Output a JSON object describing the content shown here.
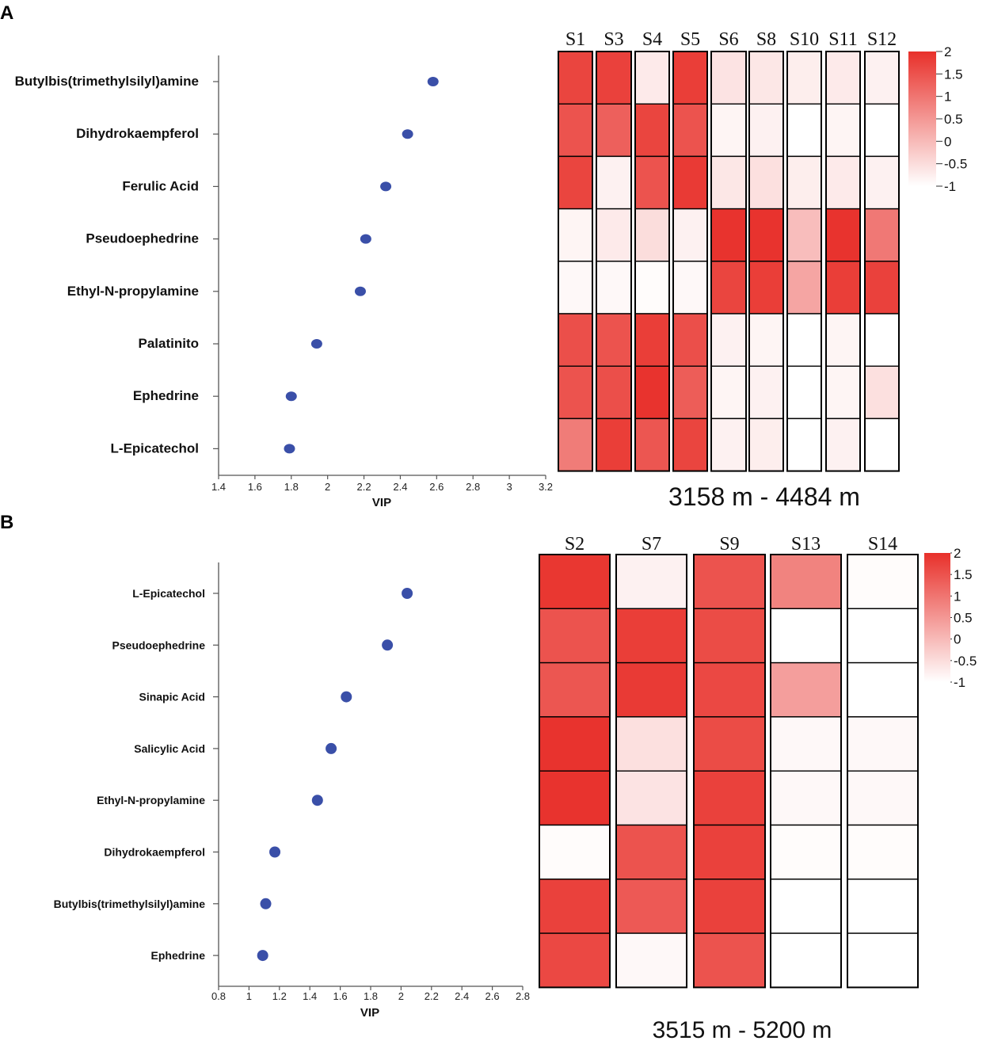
{
  "chart_data": [
    {
      "panel": "A",
      "type": "scatter",
      "xlabel": "VIP",
      "xlim": [
        1.4,
        3.2
      ],
      "xticks": [
        1.4,
        1.6,
        1.8,
        2,
        2.2,
        2.4,
        2.6,
        2.8,
        3,
        3.2
      ],
      "metabolites": [
        "Butylbis(trimethylsilyl)amine",
        "Dihydrokaempferol",
        "Ferulic Acid",
        "Pseudoephedrine",
        "Ethyl-N-propylamine",
        "Palatinito",
        "Ephedrine",
        "L-Epicatechol"
      ],
      "vip": [
        2.58,
        2.44,
        2.32,
        2.21,
        2.18,
        1.94,
        1.8,
        1.79
      ],
      "heatmap": {
        "type": "heatmap",
        "title": "3158 m - 4484 m",
        "columns": [
          "S1",
          "S3",
          "S4",
          "S5",
          "S6",
          "S8",
          "S10",
          "S11",
          "S12"
        ],
        "values": [
          [
            1.7,
            1.75,
            -0.7,
            1.8,
            -0.6,
            -0.65,
            -0.75,
            -0.7,
            -0.8
          ],
          [
            1.5,
            1.3,
            1.7,
            1.5,
            -0.85,
            -0.8,
            -1,
            -0.85,
            -1
          ],
          [
            1.7,
            -0.8,
            1.5,
            1.85,
            -0.65,
            -0.55,
            -0.75,
            -0.7,
            -0.8
          ],
          [
            -0.85,
            -0.7,
            -0.5,
            -0.8,
            1.95,
            1.95,
            -0.05,
            1.95,
            0.95
          ],
          [
            -0.9,
            -0.9,
            -0.95,
            -0.9,
            1.7,
            1.8,
            0.3,
            1.8,
            1.75
          ],
          [
            1.55,
            1.5,
            1.8,
            1.55,
            -0.8,
            -0.85,
            -1,
            -0.85,
            -1
          ],
          [
            1.5,
            1.55,
            1.95,
            1.35,
            -0.85,
            -0.8,
            -1,
            -0.85,
            -0.55
          ],
          [
            0.9,
            1.8,
            1.45,
            1.7,
            -0.8,
            -0.75,
            -1,
            -0.8,
            -1
          ]
        ],
        "legend_ticks": [
          "2",
          "1.5",
          "1",
          "0.5",
          "0",
          "-0.5",
          "-1"
        ],
        "colorbar_range": [
          -1,
          2
        ],
        "colors": {
          "low": "#ffffff",
          "high": "#e8302a"
        }
      }
    },
    {
      "panel": "B",
      "type": "scatter",
      "xlabel": "VIP",
      "xlim": [
        0.8,
        2.8
      ],
      "xticks": [
        0.8,
        1,
        1.2,
        1.4,
        1.6,
        1.8,
        2,
        2.2,
        2.4,
        2.6,
        2.8
      ],
      "metabolites": [
        "L-Epicatechol",
        "Pseudoephedrine",
        "Sinapic Acid",
        "Salicylic Acid",
        "Ethyl-N-propylamine",
        "Dihydrokaempferol",
        "Butylbis(trimethylsilyl)amine",
        "Ephedrine"
      ],
      "vip": [
        2.04,
        1.91,
        1.64,
        1.54,
        1.45,
        1.17,
        1.11,
        1.09
      ],
      "heatmap": {
        "type": "heatmap",
        "title": "3515 m - 5200 m",
        "columns": [
          "S2",
          "S7",
          "S9",
          "S13",
          "S14"
        ],
        "values": [
          [
            1.9,
            -0.8,
            1.5,
            0.8,
            -0.95
          ],
          [
            1.5,
            1.8,
            1.6,
            -1,
            -1
          ],
          [
            1.45,
            1.85,
            1.65,
            0.4,
            -1
          ],
          [
            1.95,
            -0.55,
            1.6,
            -0.9,
            -0.9
          ],
          [
            1.95,
            -0.6,
            1.75,
            -0.9,
            -0.9
          ],
          [
            -0.95,
            1.5,
            1.75,
            -0.95,
            -0.95
          ],
          [
            1.75,
            1.4,
            1.75,
            -1,
            -1
          ],
          [
            1.65,
            -0.9,
            1.5,
            -1,
            -1
          ]
        ],
        "legend_ticks": [
          "2",
          "1.5",
          "1",
          "0.5",
          "0",
          "-0.5",
          "-1"
        ],
        "colorbar_range": [
          -1,
          2
        ],
        "colors": {
          "low": "#ffffff",
          "high": "#e8302a"
        }
      }
    }
  ],
  "colors": {
    "dot": "#3a4fa8",
    "axis": "#555555",
    "cell_border": "#000000"
  }
}
